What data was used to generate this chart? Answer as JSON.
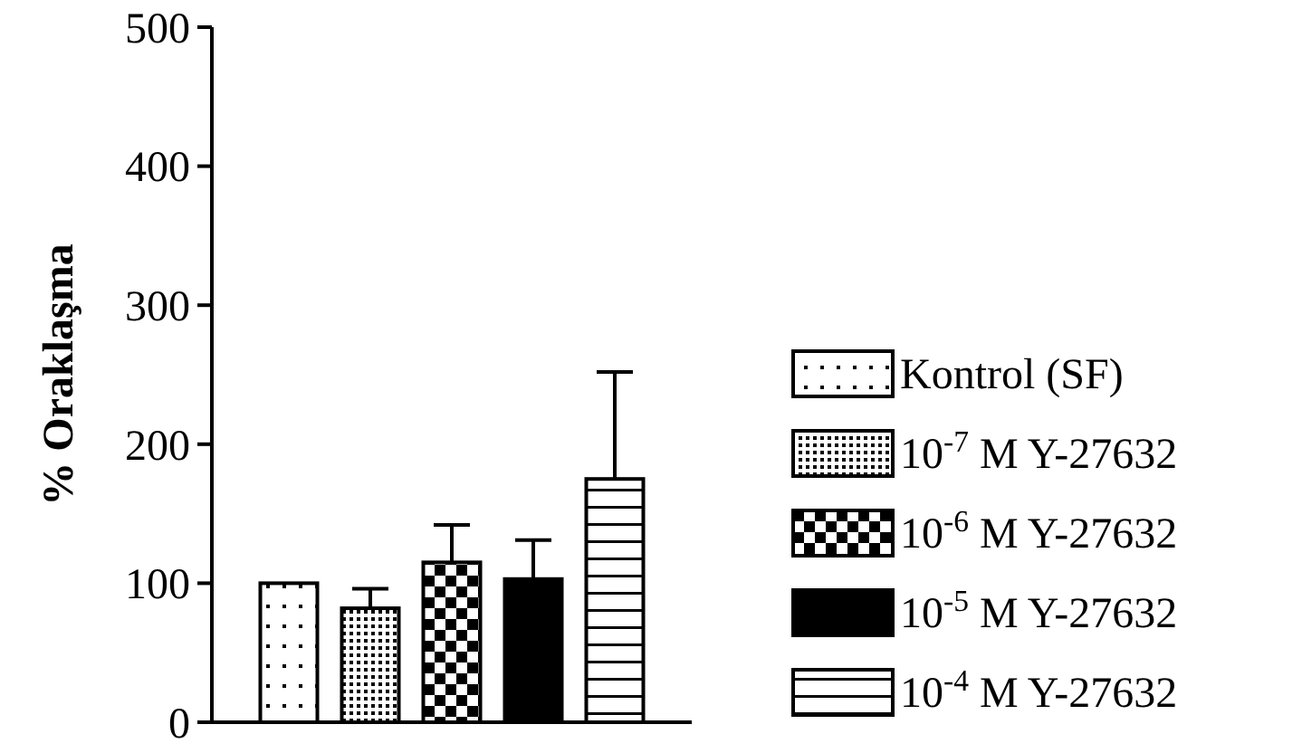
{
  "chart_data": {
    "type": "bar",
    "ylabel": "% Oraklaşma",
    "categories": [
      null
    ],
    "ylim": [
      0,
      500
    ],
    "yticks": [
      0,
      100,
      200,
      300,
      400,
      500
    ],
    "legend": "right",
    "grid": false,
    "series": [
      {
        "name": "Kontrol (SF)",
        "color": "#000000",
        "values": [
          100
        ]
      },
      {
        "name": "10$^{-7}$ M Y-27632",
        "color": "#000000",
        "values": [
          82
        ],
        "errors": [
          [
            82,
            96
          ]
        ]
      },
      {
        "name": "10$^{-6}$ M Y-27632",
        "color": "#000000",
        "values": [
          115
        ],
        "errors": [
          [
            115,
            142
          ]
        ]
      },
      {
        "name": "10$^{-5}$ M Y-27632",
        "color": "#000000",
        "values": [
          103
        ],
        "errors": [
          [
            103,
            131
          ]
        ]
      },
      {
        "name": "10$^{-4}$ M Y-27632",
        "color": "#000000",
        "values": [
          175
        ],
        "errors": [
          [
            175,
            252
          ]
        ]
      }
    ]
  }
}
